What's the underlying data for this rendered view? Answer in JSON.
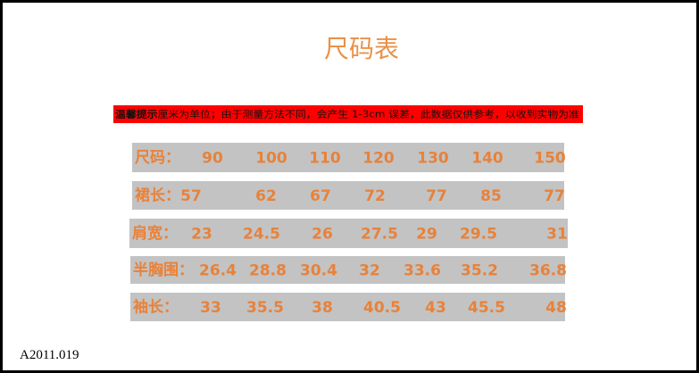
{
  "title": "尺码表",
  "notice": {
    "lead": "温馨提示",
    "text": "厘米为单位；由于测量方法不同，会产生 1-3cm 误差，此数据仅供参考，以收到实物为准"
  },
  "table": {
    "rows": [
      [
        "尺码：",
        90,
        100,
        110,
        120,
        130,
        140,
        150
      ],
      [
        "裙长：",
        57,
        62,
        67,
        72,
        77,
        85,
        77
      ],
      [
        "肩宽：",
        23,
        24.5,
        26,
        27.5,
        29,
        29.5,
        31
      ],
      [
        "半胸围：",
        26.4,
        28.8,
        30.4,
        32,
        33.6,
        35.2,
        36.8
      ],
      [
        "袖长：",
        33,
        35.5,
        38,
        40.5,
        43,
        45.5,
        48
      ]
    ]
  },
  "footer": "A2011.019"
}
